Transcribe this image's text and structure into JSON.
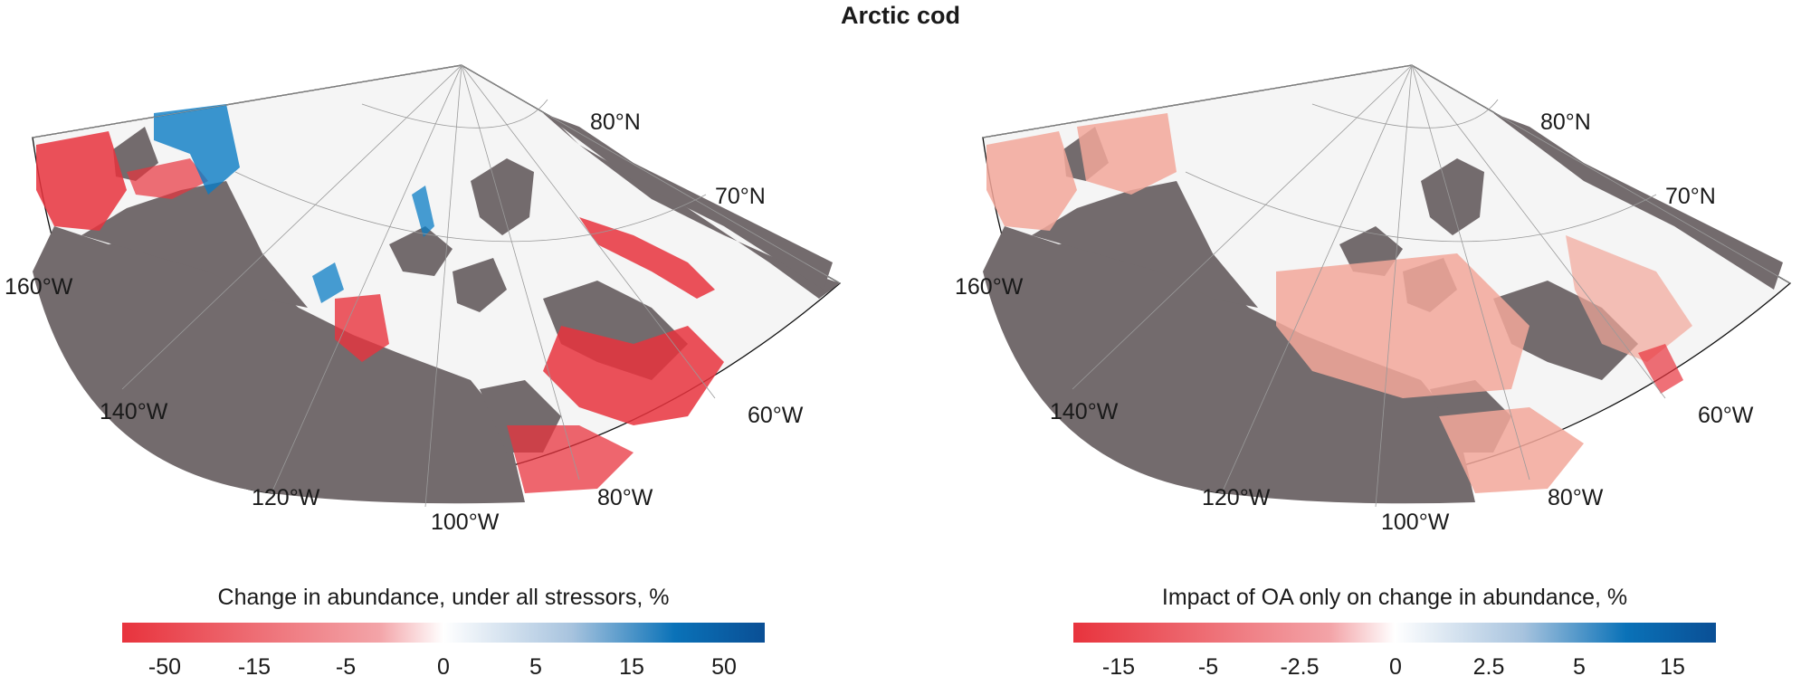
{
  "title": "Arctic cod",
  "panels": [
    {
      "lat_labels": [
        "80°N",
        "70°N"
      ],
      "lon_labels": [
        "160°W",
        "140°W",
        "120°W",
        "100°W",
        "80°W",
        "60°W"
      ],
      "colorbar": {
        "title": "Change in abundance, under all stressors, %",
        "ticks": [
          "-50",
          "-15",
          "-5",
          "0",
          "5",
          "15",
          "50"
        ]
      }
    },
    {
      "lat_labels": [
        "80°N",
        "70°N"
      ],
      "lon_labels": [
        "160°W",
        "140°W",
        "120°W",
        "100°W",
        "80°W",
        "60°W"
      ],
      "colorbar": {
        "title": "Impact of OA only on change in abundance, %",
        "ticks": [
          "-15",
          "-5",
          "-2.5",
          "0",
          "2.5",
          "5",
          "15"
        ]
      }
    }
  ],
  "colors": {
    "land": "#736b6d",
    "ocean": "#f5f5f5",
    "negative": "#e8333d",
    "neutral": "#ffffff",
    "positive": "#0a5ca3"
  }
}
